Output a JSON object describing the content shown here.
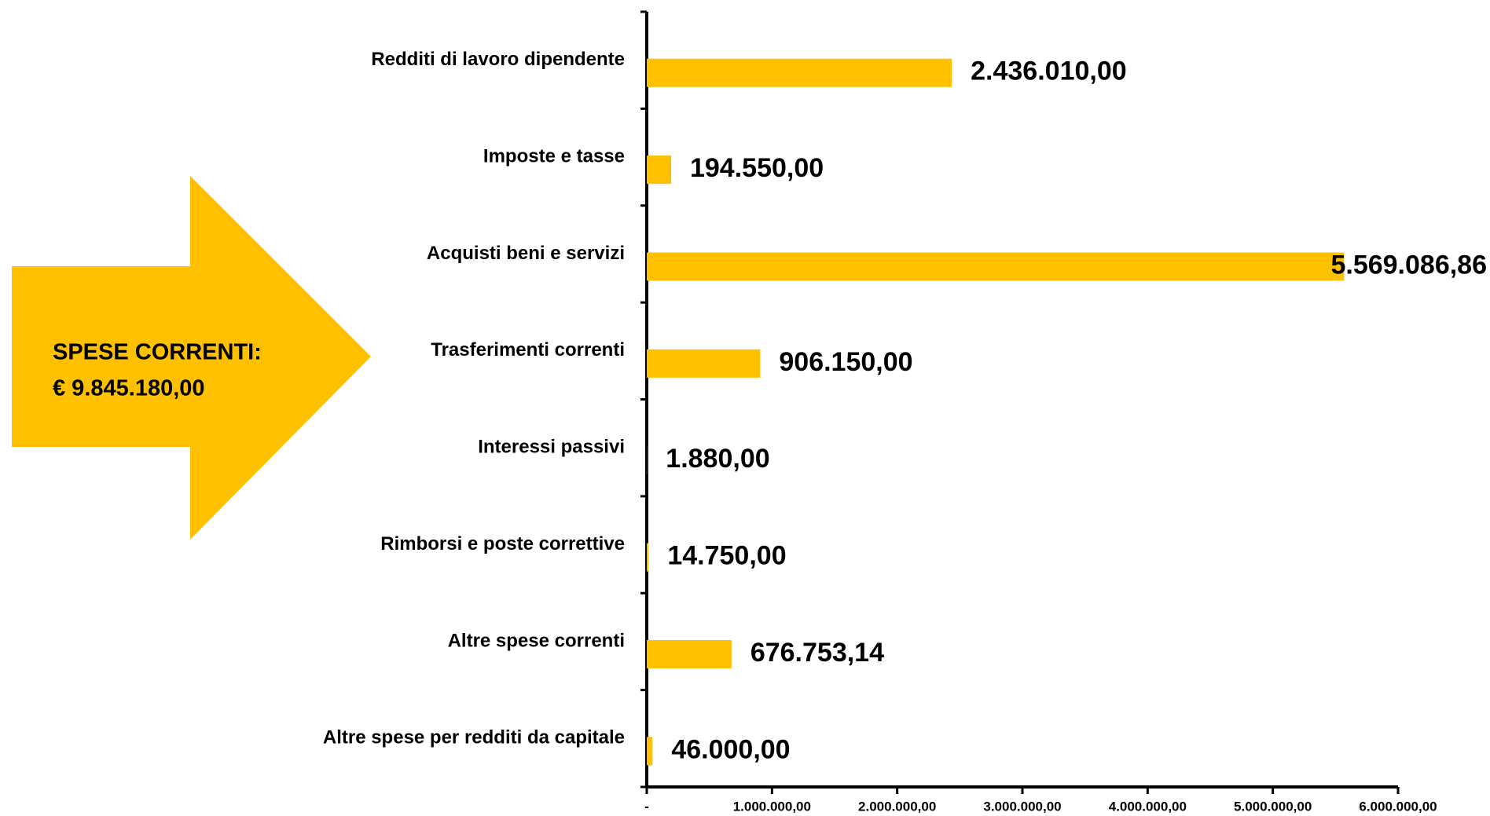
{
  "chart_data": {
    "type": "bar",
    "orientation": "horizontal",
    "categories": [
      "Redditi di lavoro dipendente",
      "Imposte e tasse",
      "Acquisti beni e servizi",
      "Trasferimenti correnti",
      "Interessi passivi",
      "Rimborsi e poste correttive",
      "Altre spese correnti",
      "Altre spese per redditi da capitale"
    ],
    "values": [
      2436010,
      194550,
      5569086.86,
      906150,
      1880,
      14750,
      676753.14,
      46000
    ],
    "value_labels": [
      "2.436.010,00",
      "194.550,00",
      "5.569.086,86",
      "906.150,00",
      "1.880,00",
      "14.750,00",
      "676.753,14",
      "46.000,00"
    ],
    "color": "#FFC000",
    "xlim": [
      0,
      6000000
    ],
    "xticks": [
      {
        "value": 0,
        "label": "-"
      },
      {
        "value": 1000000,
        "label": "1.000.000,00"
      },
      {
        "value": 2000000,
        "label": "2.000.000,00"
      },
      {
        "value": 3000000,
        "label": "3.000.000,00"
      },
      {
        "value": 4000000,
        "label": "4.000.000,00"
      },
      {
        "value": 5000000,
        "label": "5.000.000,00"
      },
      {
        "value": 6000000,
        "label": "6.000.000,00"
      }
    ],
    "grid": false,
    "annotation": [
      "SPESE CORRENTI:",
      "€ 9.845.180,00"
    ]
  }
}
